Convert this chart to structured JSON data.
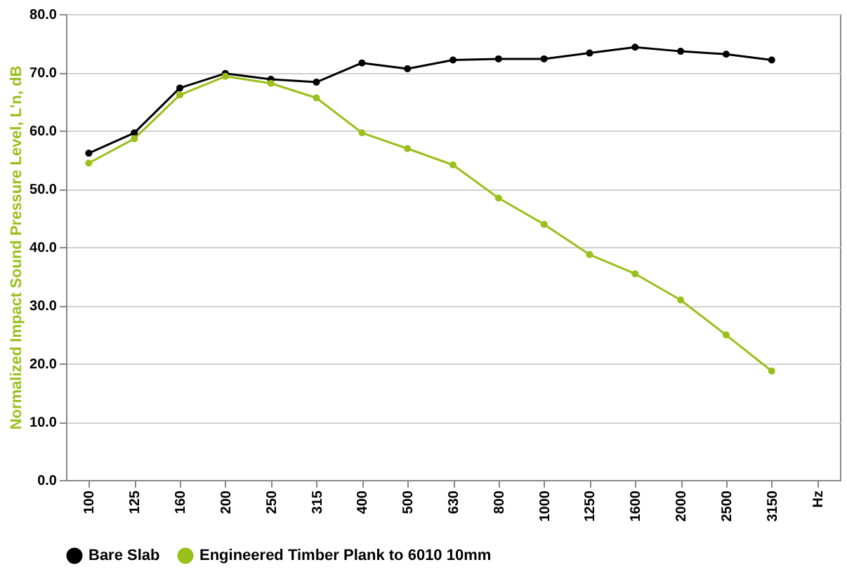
{
  "chart_data": {
    "type": "line",
    "ylabel": "Normalized Impact Sound Pressure Level, L'n, dB",
    "categories": [
      "100",
      "125",
      "160",
      "200",
      "250",
      "315",
      "400",
      "500",
      "630",
      "800",
      "1000",
      "1250",
      "1600",
      "2000",
      "2500",
      "3150",
      "Hz"
    ],
    "series": [
      {
        "name": "Bare Slab",
        "color": "#000000",
        "values": [
          56.1,
          59.6,
          67.3,
          69.8,
          68.8,
          68.3,
          71.6,
          70.6,
          72.1,
          72.3,
          72.3,
          73.3,
          74.3,
          73.6,
          73.1,
          72.1,
          null
        ]
      },
      {
        "name": "Engineered Timber Plank to 6010 10mm",
        "color": "#99c01c",
        "values": [
          54.4,
          58.6,
          66.1,
          69.3,
          68.1,
          65.6,
          59.6,
          56.9,
          54.1,
          48.4,
          43.9,
          38.7,
          35.4,
          30.9,
          24.9,
          18.7,
          null
        ]
      }
    ],
    "ylim": [
      0,
      80
    ],
    "yticks": [
      {
        "value": 0,
        "label": "0.0"
      },
      {
        "value": 10,
        "label": "10.0"
      },
      {
        "value": 20,
        "label": "20.0"
      },
      {
        "value": 30,
        "label": "30.0"
      },
      {
        "value": 40,
        "label": "40.0"
      },
      {
        "value": 50,
        "label": "50.0"
      },
      {
        "value": 60,
        "label": "60.0"
      },
      {
        "value": 70,
        "label": "70.0"
      },
      {
        "value": 80,
        "label": "80.0"
      }
    ],
    "grid": "y",
    "legend": "bottom",
    "marker": "circle",
    "line_style": "solid"
  }
}
